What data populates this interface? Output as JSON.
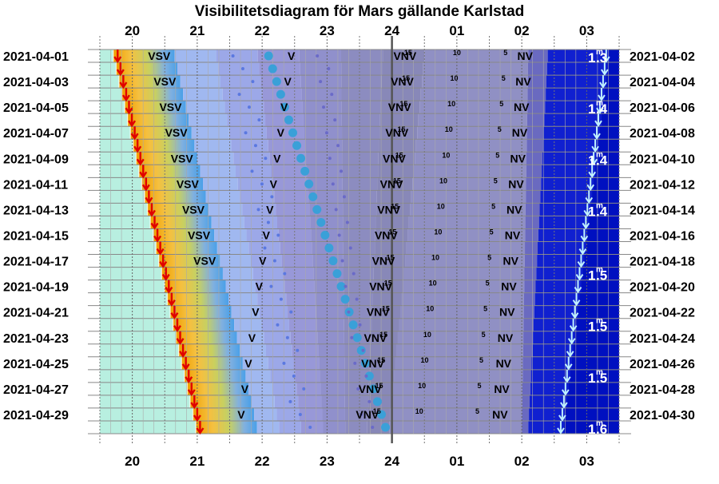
{
  "chart_data": {
    "type": "heatmap",
    "title": "Visibilitetsdiagram för Mars gällande Karlstad",
    "x_range": [
      19.5,
      27.5
    ],
    "hour_ticks": [
      "20",
      "21",
      "22",
      "23",
      "24",
      "01",
      "02",
      "03"
    ],
    "left_dates": [
      "2021-04-01",
      "2021-04-03",
      "2021-04-05",
      "2021-04-07",
      "2021-04-09",
      "2021-04-11",
      "2021-04-13",
      "2021-04-15",
      "2021-04-17",
      "2021-04-19",
      "2021-04-21",
      "2021-04-23",
      "2021-04-25",
      "2021-04-27",
      "2021-04-29"
    ],
    "right_dates": [
      "2021-04-02",
      "2021-04-04",
      "2021-04-06",
      "2021-04-08",
      "2021-04-10",
      "2021-04-12",
      "2021-04-14",
      "2021-04-16",
      "2021-04-18",
      "2021-04-20",
      "2021-04-22",
      "2021-04-24",
      "2021-04-26",
      "2021-04-28",
      "2021-04-30"
    ],
    "rows": 30,
    "sunset": [
      19.7,
      20.97
    ],
    "mars_set": [
      24.3,
      23.76
    ],
    "moon_rise": [
      27.35,
      26.65
    ],
    "direction_labels": [
      "VSV",
      "V",
      "VNV",
      "NV"
    ],
    "altitude_labels": [
      "15",
      "10",
      "5"
    ],
    "magnitudes": [
      "1.3",
      "1.4",
      "1.4",
      "1.4",
      "1.5",
      "1.5",
      "1.5",
      "1.6"
    ],
    "magnitude_unit": "m",
    "colors": {
      "day": "#b8efe0",
      "twilight": [
        "#f0a000",
        "#f5c040",
        "#c8d060",
        "#80b0e0",
        "#4aa0e8"
      ],
      "night": "#9898d8",
      "moon": "#0010c0",
      "marker": "#e00000",
      "moon_marker": "#c0f0ff",
      "dot": "#3aa0d8"
    }
  }
}
